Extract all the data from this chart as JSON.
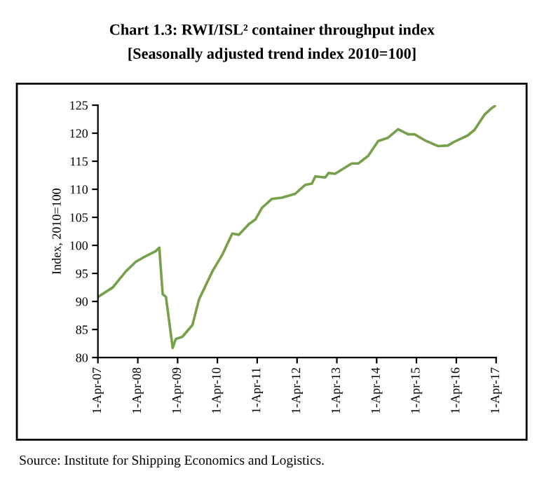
{
  "chart_data": {
    "type": "line",
    "title": "Chart 1.3: RWI/ISL² container throughput index",
    "subtitle": "[Seasonally adjusted trend index 2010=100]",
    "ylabel": "Index, 2010=100",
    "x": [
      "2007-04-01",
      "2007-08",
      "2007-12",
      "2008-03",
      "2008-06",
      "2008-09",
      "2008-10",
      "2008-11",
      "2008-12",
      "2009-02",
      "2009-03",
      "2009-05",
      "2009-08",
      "2009-10",
      "2010-02",
      "2010-05",
      "2010-08",
      "2010-10",
      "2011-01",
      "2011-03",
      "2011-05",
      "2011-08",
      "2011-11",
      "2012-03",
      "2012-06",
      "2012-08",
      "2012-09",
      "2012-12",
      "2013-01",
      "2013-03",
      "2013-08",
      "2013-10",
      "2014-01",
      "2014-04",
      "2014-07",
      "2014-10",
      "2015-01",
      "2015-03",
      "2015-06",
      "2015-10",
      "2016-01",
      "2016-03",
      "2016-07",
      "2016-09",
      "2016-12",
      "2017-02",
      "2017-04-01"
    ],
    "series": [
      {
        "color": "#77a04a",
        "values": [
          90.8,
          92.5,
          95.4,
          97.1,
          98.1,
          99.0,
          99.6,
          91.3,
          90.8,
          81.7,
          83.3,
          83.7,
          85.8,
          90.4,
          95.4,
          98.3,
          102.1,
          101.9,
          103.8,
          104.6,
          106.7,
          108.3,
          108.5,
          109.2,
          110.8,
          111.0,
          112.3,
          112.1,
          112.9,
          112.75,
          114.6,
          114.6,
          116.0,
          118.6,
          119.2,
          120.7,
          119.8,
          119.8,
          118.75,
          117.7,
          117.8,
          118.5,
          119.6,
          120.6,
          123.3,
          124.4,
          125.0
        ]
      }
    ],
    "xlim": [
      "2007-04-01",
      "2017-04-01"
    ],
    "xticks": [
      {
        "value": "2007-04-01",
        "label": "1-Apr-07"
      },
      {
        "value": "2008-04-01",
        "label": "1-Apr-08"
      },
      {
        "value": "2009-04-01",
        "label": "1-Apr-09"
      },
      {
        "value": "2010-04-01",
        "label": "1-Apr-10"
      },
      {
        "value": "2011-04-01",
        "label": "1-Apr-11"
      },
      {
        "value": "2012-04-01",
        "label": "1-Apr-12"
      },
      {
        "value": "2013-04-01",
        "label": "1-Apr-13"
      },
      {
        "value": "2014-04-01",
        "label": "1-Apr-14"
      },
      {
        "value": "2015-04-01",
        "label": "1-Apr-15"
      },
      {
        "value": "2016-04-01",
        "label": "1-Apr-16"
      },
      {
        "value": "2017-04-01",
        "label": "1-Apr-17"
      }
    ],
    "ylim": [
      80,
      125
    ],
    "yticks": [
      80,
      85,
      90,
      95,
      100,
      105,
      110,
      115,
      120,
      125
    ],
    "grid": false,
    "legend": false,
    "marker": "none",
    "line_style": "solid",
    "annotations": [
      "Source: Institute for Shipping Economics and Logistics."
    ]
  }
}
